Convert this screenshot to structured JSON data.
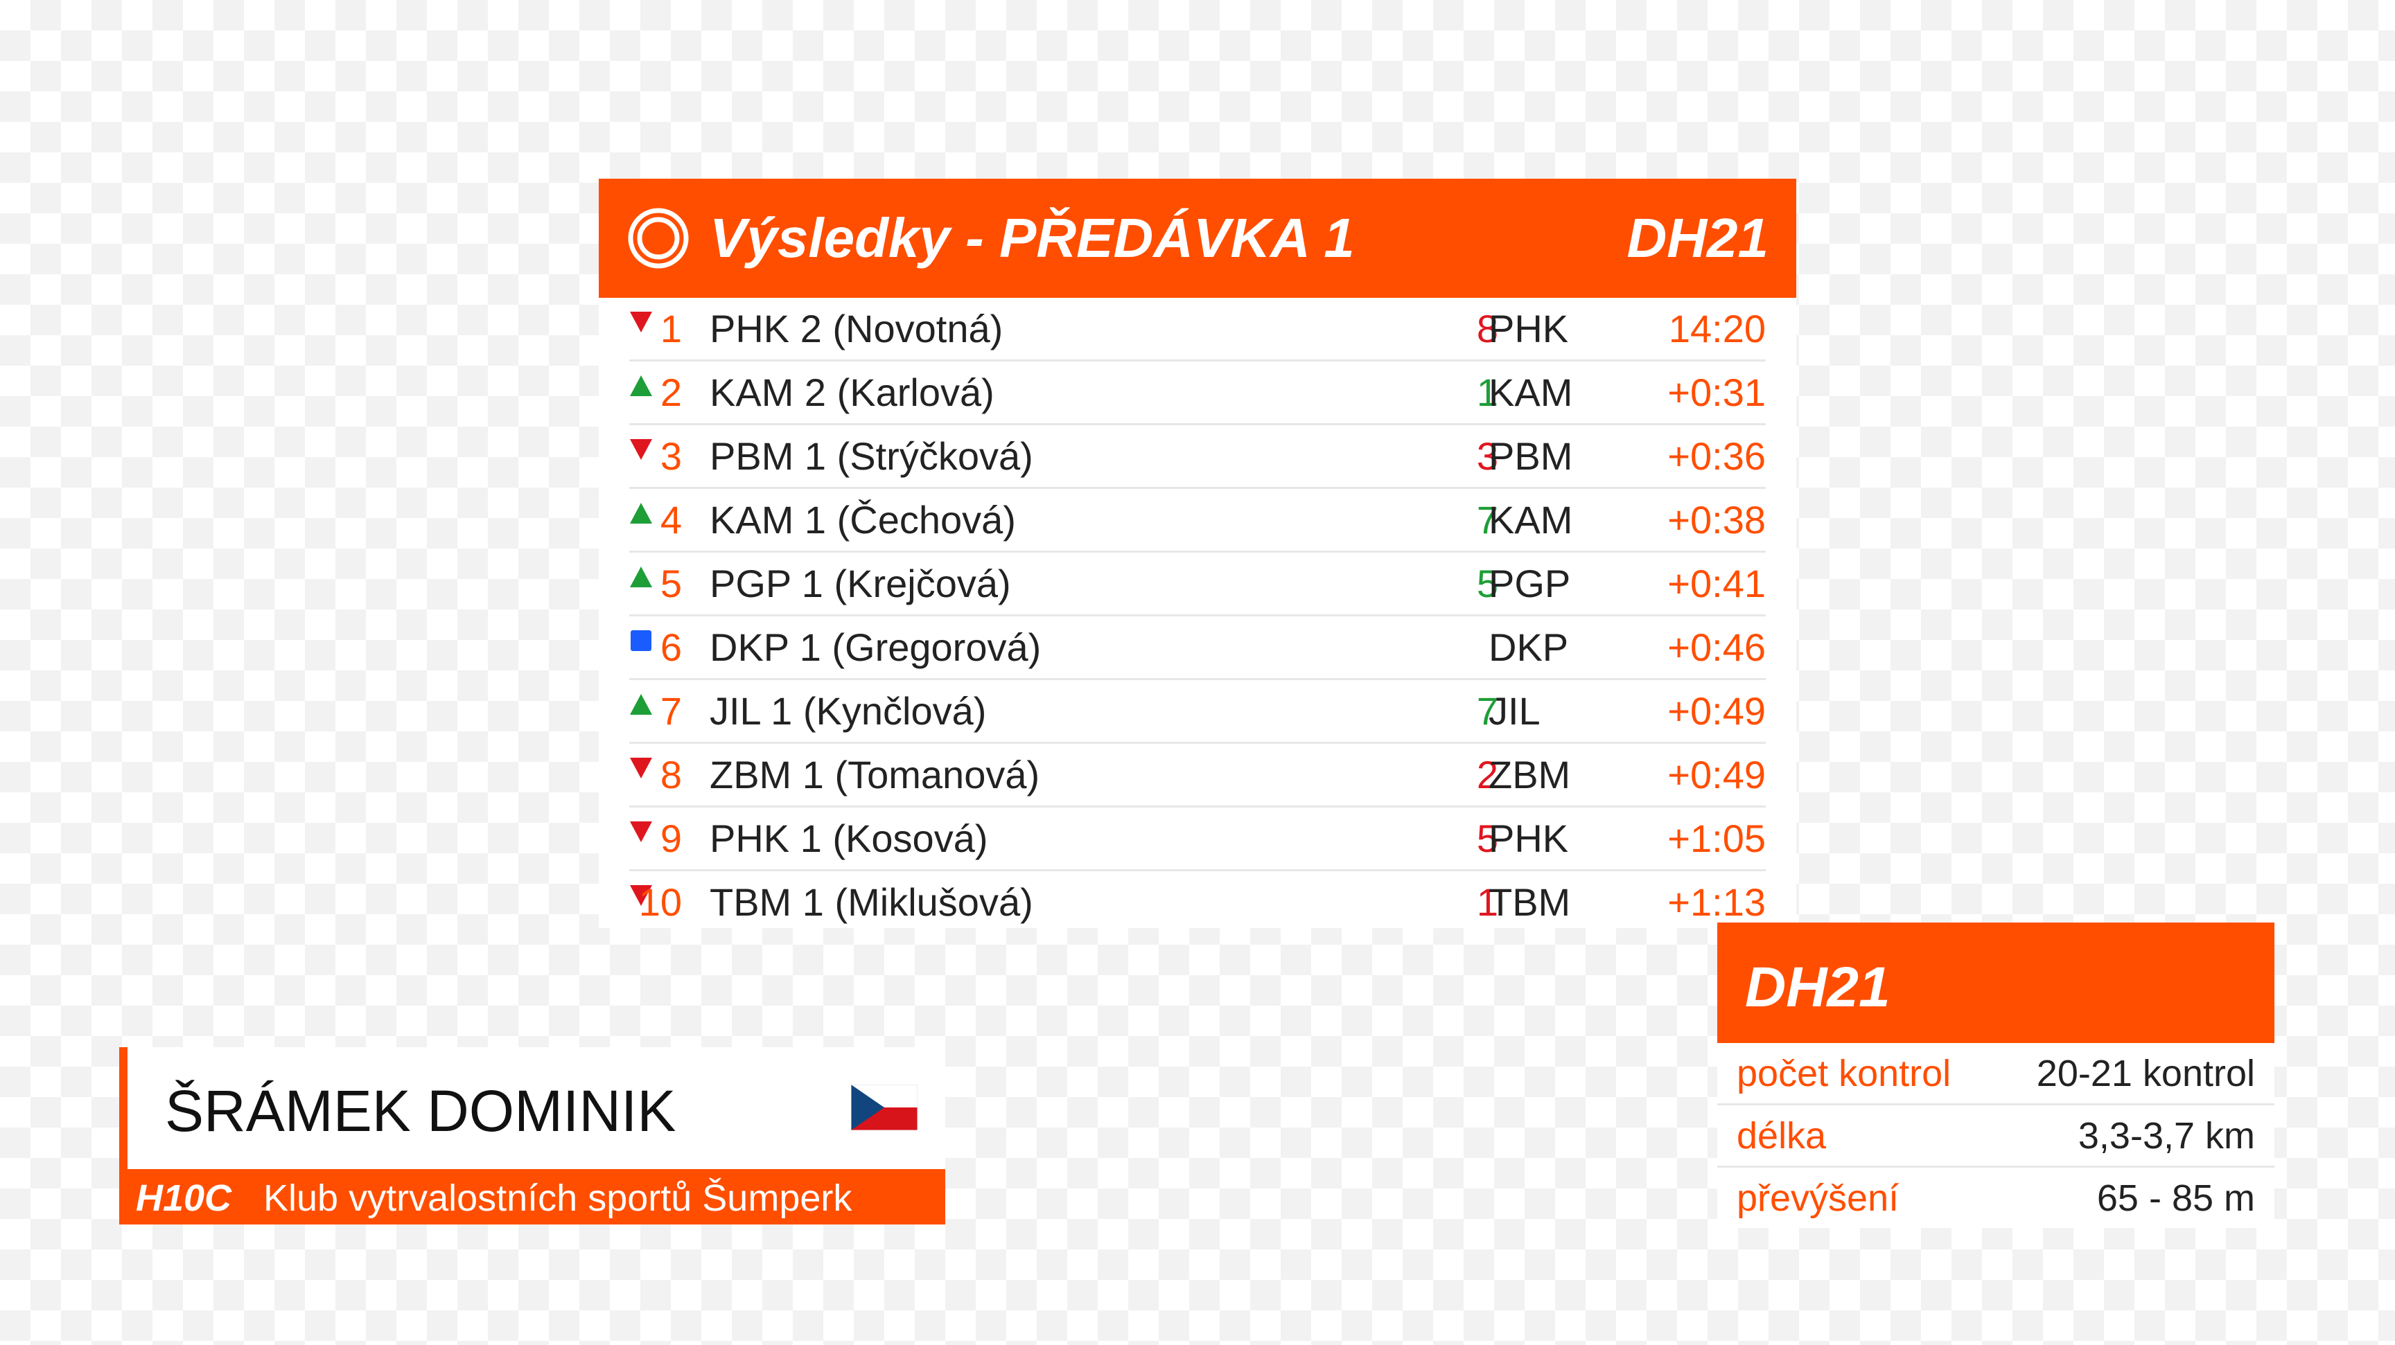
{
  "results": {
    "title": "Výsledky - PŘEDÁVKA 1",
    "category": "DH21",
    "rows": [
      {
        "rank": "1",
        "name": "PHK 2 (Novotná)",
        "change": "8",
        "trend": "down",
        "club": "PHK",
        "time": "14:20"
      },
      {
        "rank": "2",
        "name": "KAM 2 (Karlová)",
        "change": "1",
        "trend": "up",
        "club": "KAM",
        "time": "+0:31"
      },
      {
        "rank": "3",
        "name": "PBM 1 (Strýčková)",
        "change": "3",
        "trend": "down",
        "club": "PBM",
        "time": "+0:36"
      },
      {
        "rank": "4",
        "name": "KAM 1 (Čechová)",
        "change": "7",
        "trend": "up",
        "club": "KAM",
        "time": "+0:38"
      },
      {
        "rank": "5",
        "name": "PGP 1 (Krejčová)",
        "change": "5",
        "trend": "up",
        "club": "PGP",
        "time": "+0:41"
      },
      {
        "rank": "6",
        "name": "DKP 1 (Gregorová)",
        "change": "",
        "trend": "same",
        "club": "DKP",
        "time": "+0:46"
      },
      {
        "rank": "7",
        "name": "JIL 1 (Kynčlová)",
        "change": "7",
        "trend": "up",
        "club": "JIL",
        "time": "+0:49"
      },
      {
        "rank": "8",
        "name": "ZBM 1 (Tomanová)",
        "change": "2",
        "trend": "down",
        "club": "ZBM",
        "time": "+0:49"
      },
      {
        "rank": "9",
        "name": "PHK 1 (Kosová)",
        "change": "5",
        "trend": "down",
        "club": "PHK",
        "time": "+1:05"
      },
      {
        "rank": "10",
        "name": "TBM 1 (Miklušová)",
        "change": "1",
        "trend": "down",
        "club": "TBM",
        "time": "+1:13"
      }
    ]
  },
  "competitor": {
    "full_name": "ŠRÁMEK DOMINIK",
    "category": "H10C",
    "club": "Klub vytrvalostních sportů Šumperk",
    "flag_icon": "czech-flag-icon"
  },
  "course": {
    "category": "DH21",
    "rows": [
      {
        "label": "počet kontrol",
        "value": "20-21 kontrol"
      },
      {
        "label": "délka",
        "value": "3,3-3,7 km"
      },
      {
        "label": "převýšení",
        "value": "65 - 85 m"
      }
    ]
  },
  "colors": {
    "accent": "#ff4e00",
    "up": "#1e9e37",
    "down": "#e0161f",
    "same": "#1a5cff"
  }
}
